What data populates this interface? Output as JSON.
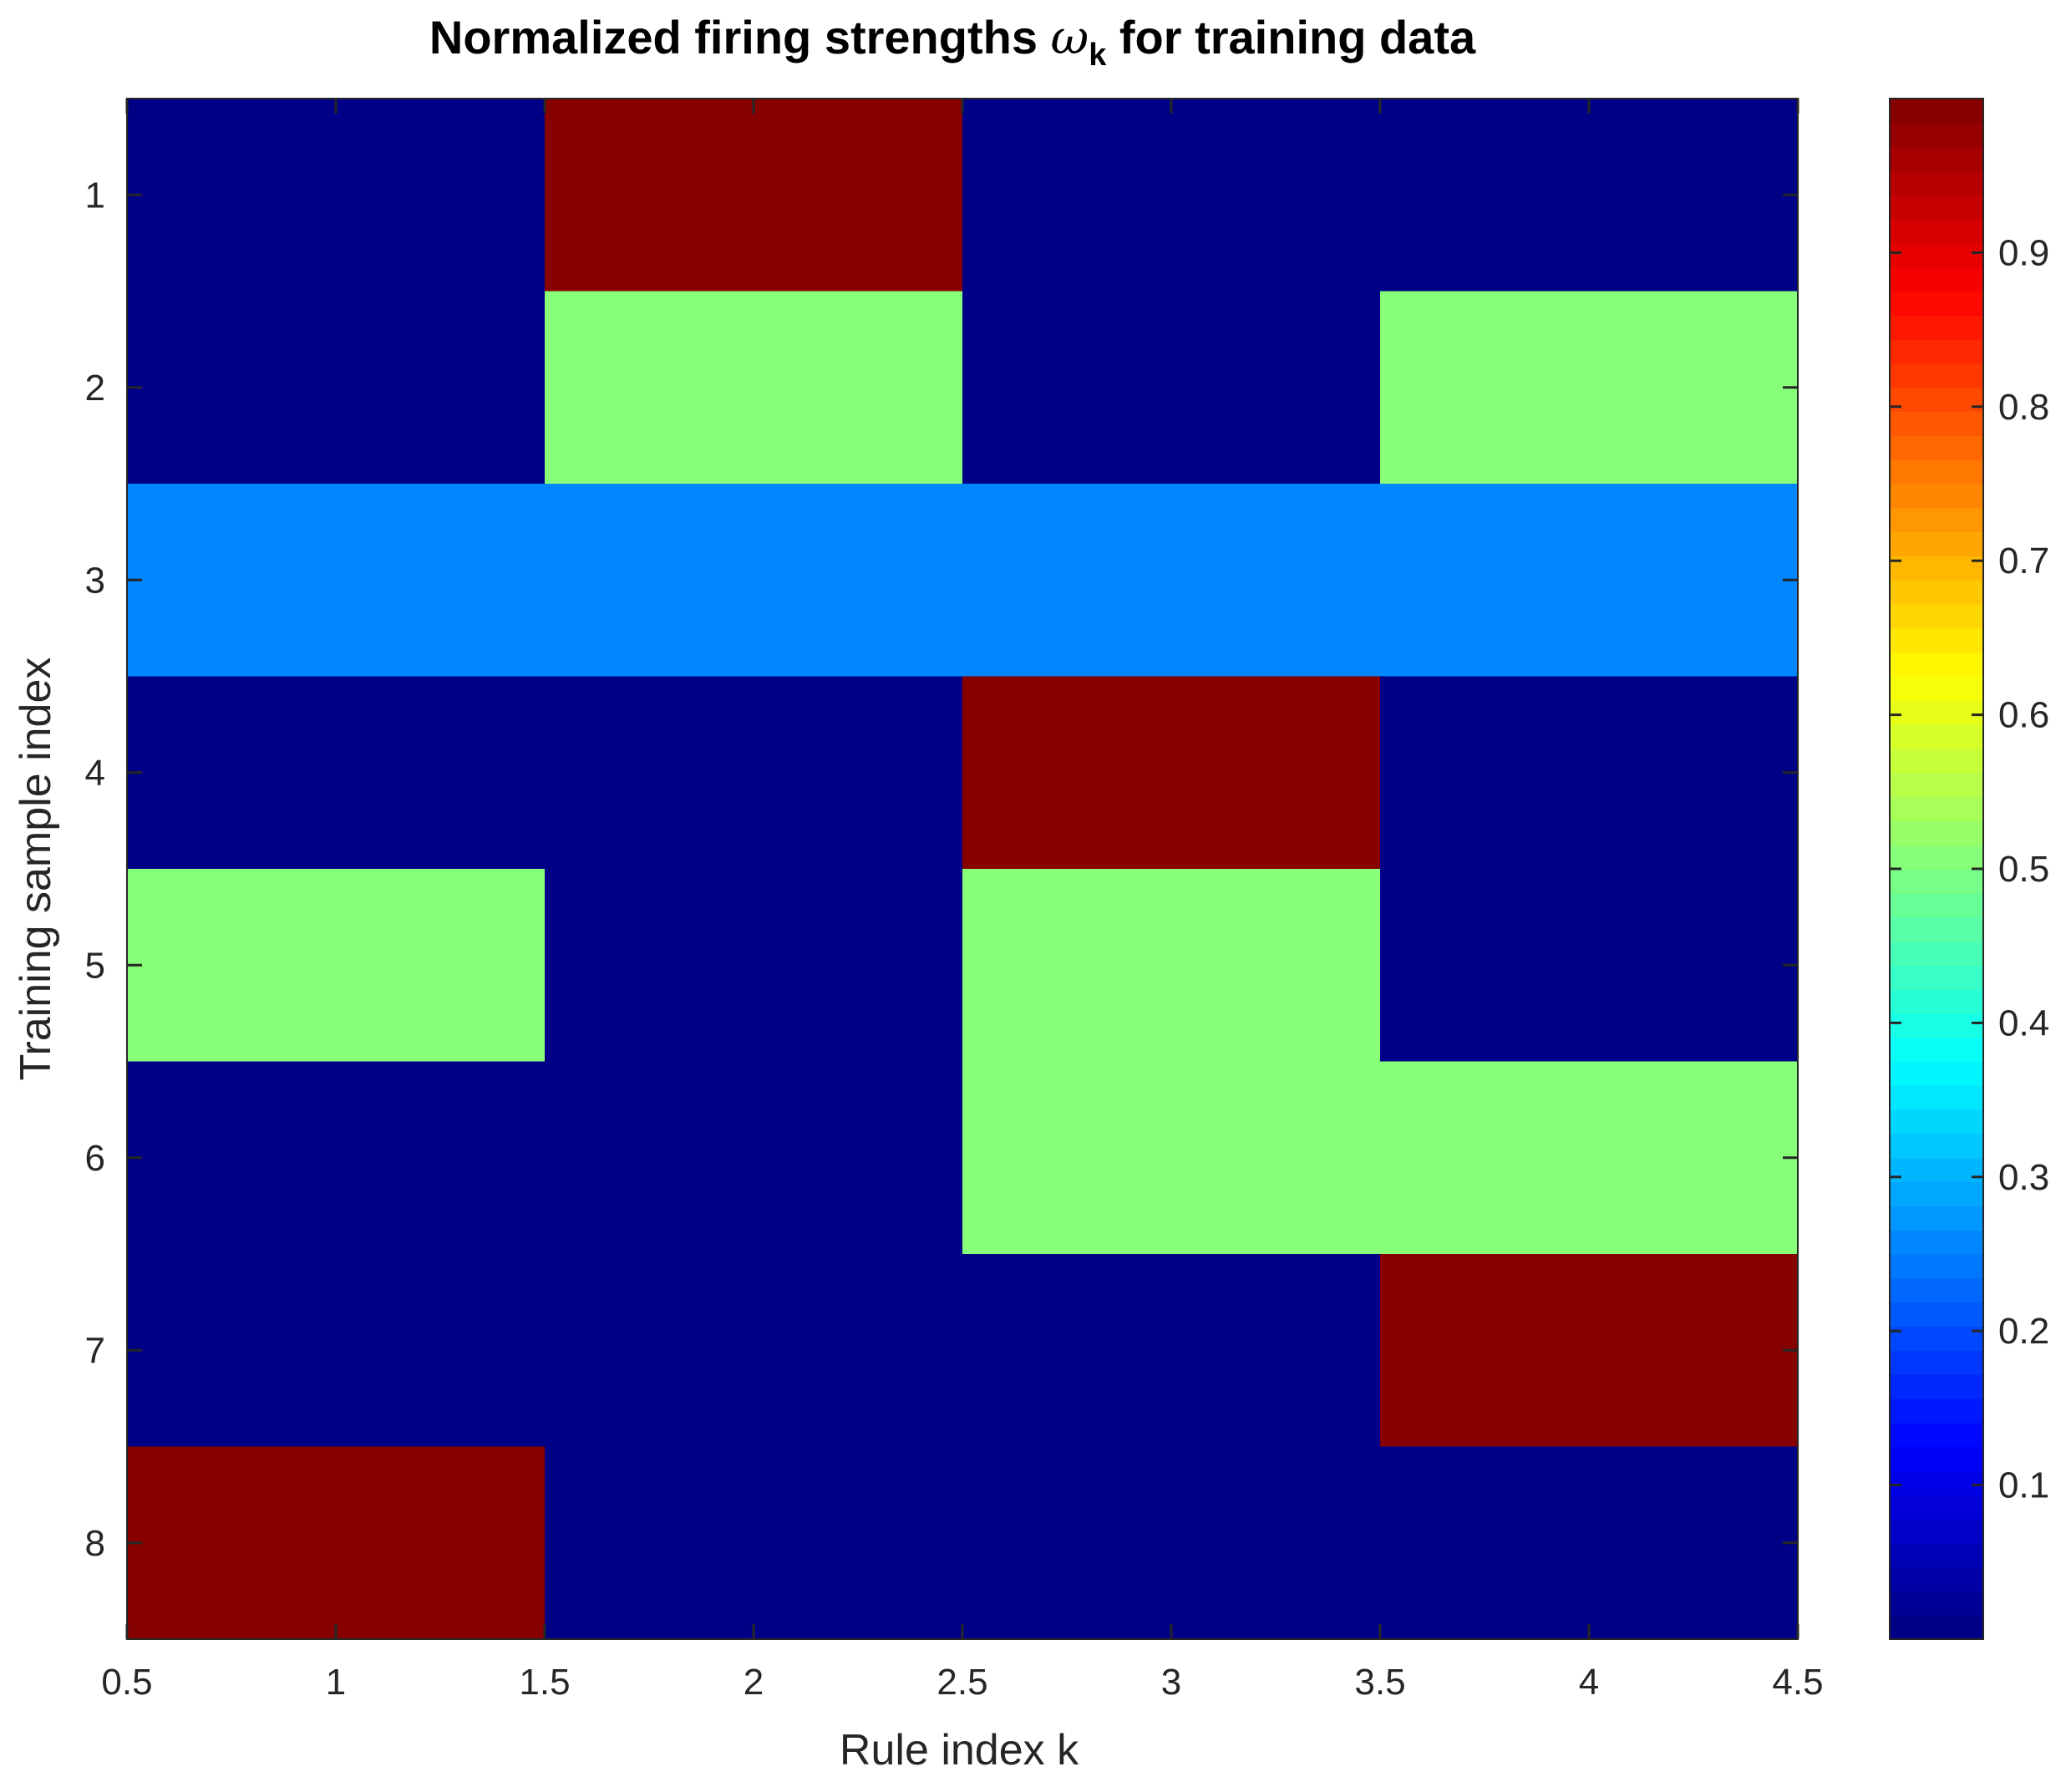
{
  "chart_data": {
    "type": "heatmap",
    "title_prefix": "Normalized firing strengths ",
    "title_symbol": "ω",
    "title_subscript": "k",
    "title_suffix": " for training data",
    "xlabel": "Rule index k",
    "ylabel": "Training sample index",
    "xlim": [
      0.5,
      4.5
    ],
    "ylim": [
      0.5,
      8.5
    ],
    "y_reversed": true,
    "x_ticks": [
      0.5,
      1,
      1.5,
      2,
      2.5,
      3,
      3.5,
      4,
      4.5
    ],
    "x_tick_labels": [
      "0.5",
      "1",
      "1.5",
      "2",
      "2.5",
      "3",
      "3.5",
      "4",
      "4.5"
    ],
    "y_ticks": [
      1,
      2,
      3,
      4,
      5,
      6,
      7,
      8
    ],
    "y_tick_labels": [
      "1",
      "2",
      "3",
      "4",
      "5",
      "6",
      "7",
      "8"
    ],
    "columns": [
      1,
      2,
      3,
      4
    ],
    "rows": [
      1,
      2,
      3,
      4,
      5,
      6,
      7,
      8
    ],
    "values": [
      [
        0,
        1,
        0,
        0
      ],
      [
        0,
        0.5,
        0,
        0.5
      ],
      [
        0.25,
        0.25,
        0.25,
        0.25
      ],
      [
        0,
        0,
        1,
        0
      ],
      [
        0.5,
        0,
        0.5,
        0
      ],
      [
        0,
        0,
        0.5,
        0.5
      ],
      [
        0,
        0,
        0,
        1
      ],
      [
        1,
        0,
        0,
        0
      ]
    ],
    "colormap": "jet",
    "color_limits": [
      0,
      1
    ],
    "colorbar": {
      "ticks": [
        0.1,
        0.2,
        0.3,
        0.4,
        0.5,
        0.6,
        0.7,
        0.8,
        0.9
      ],
      "tick_labels": [
        "0.1",
        "0.2",
        "0.3",
        "0.4",
        "0.5",
        "0.6",
        "0.7",
        "0.8",
        "0.9"
      ],
      "levels": 64,
      "placement": "right"
    },
    "grid": false
  }
}
